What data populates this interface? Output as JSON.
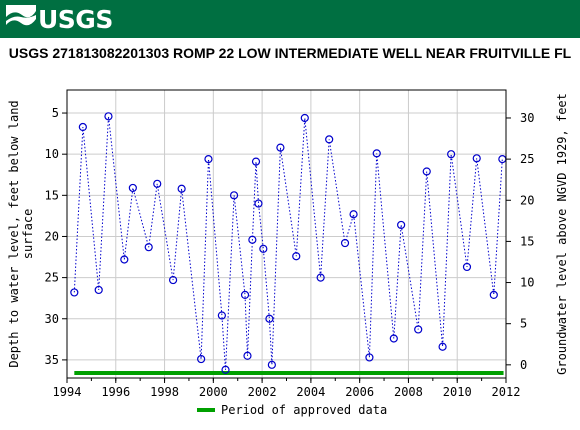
{
  "header": {
    "logo_text": "USGS",
    "color": "#006f41"
  },
  "chart_data": {
    "type": "scatter",
    "title": "USGS 271813082201303 ROMP 22 LOW INTERMEDIATE WELL NEAR FRUITVILLE FL",
    "ylabel_left": "Depth to water level, feet below land surface",
    "ylabel_left_lines": [
      "Depth to water level, feet below land",
      "surface"
    ],
    "ylabel_right": "Groundwater level above NGVD 1929, feet",
    "x_ticks": [
      "1994",
      "1996",
      "1998",
      "2000",
      "2002",
      "2004",
      "2006",
      "2008",
      "2010",
      "2012"
    ],
    "y_left_ticks": [
      "5",
      "10",
      "15",
      "20",
      "25",
      "30",
      "35"
    ],
    "y_right_ticks": [
      "30",
      "25",
      "20",
      "15",
      "10",
      "5",
      "0"
    ],
    "xlim": [
      1994,
      2012
    ],
    "ylim_left": [
      37.2,
      2.2
    ],
    "y_left_inverted": true,
    "grid": true,
    "marker": "circle",
    "line_style": "dotted",
    "series_color": "#0000cc",
    "approved_color": "#00a000",
    "approved_period": [
      1994.3,
      2011.9
    ],
    "legend": {
      "label": "Period of approved data",
      "position": "bottom"
    },
    "x": [
      1994.3,
      1994.65,
      1995.3,
      1995.7,
      1996.35,
      1996.7,
      1997.35,
      1997.7,
      1998.35,
      1998.7,
      1999.5,
      1999.8,
      2000.35,
      2000.5,
      2000.85,
      2001.3,
      2001.4,
      2001.6,
      2001.75,
      2001.85,
      2002.05,
      2002.3,
      2002.4,
      2002.75,
      2003.4,
      2003.75,
      2004.4,
      2004.75,
      2005.4,
      2005.75,
      2006.4,
      2006.7,
      2007.4,
      2007.7,
      2008.4,
      2008.75,
      2009.4,
      2009.75,
      2010.4,
      2010.8,
      2011.5,
      2011.85
    ],
    "y": [
      26.8,
      6.7,
      26.5,
      5.4,
      22.8,
      14.1,
      21.3,
      13.6,
      25.3,
      14.2,
      34.9,
      10.6,
      29.6,
      36.2,
      15.0,
      27.1,
      34.5,
      20.4,
      10.9,
      16.0,
      21.5,
      30.0,
      35.6,
      9.2,
      22.4,
      5.6,
      25.0,
      8.2,
      20.8,
      17.3,
      34.7,
      9.9,
      32.4,
      18.6,
      31.3,
      12.1,
      33.4,
      10.0,
      23.7,
      10.5,
      27.1,
      10.6
    ]
  }
}
